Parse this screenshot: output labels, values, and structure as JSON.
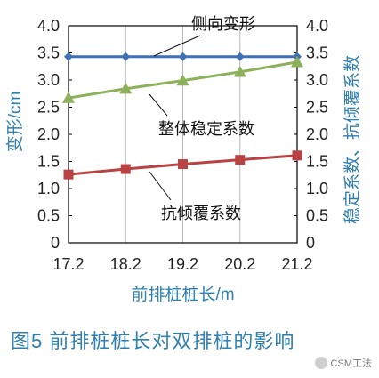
{
  "chart_data": {
    "type": "line",
    "x": [
      17.2,
      18.2,
      19.2,
      20.2,
      21.2
    ],
    "xlabel": "前排桩桩长/m",
    "ylabel_left": "变形/cm",
    "ylabel_right": "稳定系数、抗倾覆系数",
    "xlim": [
      17.2,
      21.2
    ],
    "ylim_left": [
      0,
      4.0
    ],
    "ylim_right": [
      0,
      4.0
    ],
    "y_ticks": [
      "0",
      "0.5",
      "1.0",
      "1.5",
      "2.0",
      "2.5",
      "3.0",
      "3.5",
      "4.0"
    ],
    "x_ticks": [
      "17.2",
      "18.2",
      "19.2",
      "20.2",
      "21.2"
    ],
    "grid": "vertical",
    "series": [
      {
        "name": "侧向变形",
        "values": [
          3.43,
          3.43,
          3.43,
          3.43,
          3.43
        ],
        "color": "#3f6fb5",
        "marker": "diamond"
      },
      {
        "name": "整体稳定系数",
        "values": [
          2.67,
          2.84,
          2.99,
          3.15,
          3.33
        ],
        "color": "#8db15b",
        "marker": "triangle"
      },
      {
        "name": "抗倾覆系数",
        "values": [
          1.26,
          1.36,
          1.45,
          1.53,
          1.61
        ],
        "color": "#b94243",
        "marker": "square"
      }
    ]
  },
  "caption": "图5   前排桩桩长对双排桩的影响",
  "watermark": "CSM工法",
  "colors": {
    "axis_title": "#2f7fb0",
    "grid": "#b8b8b8"
  }
}
